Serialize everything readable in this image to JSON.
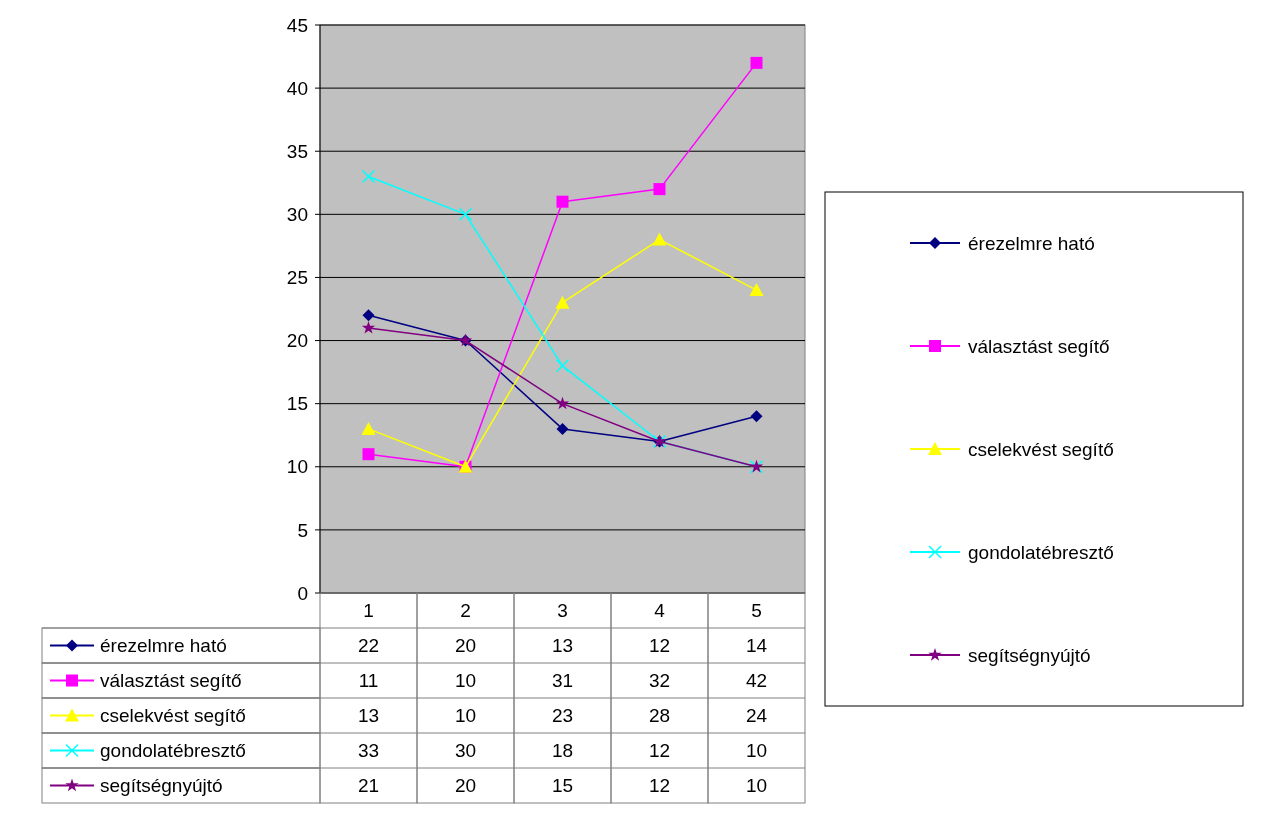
{
  "chart_data": {
    "type": "line",
    "categories": [
      "1",
      "2",
      "3",
      "4",
      "5"
    ],
    "ylim": [
      0,
      45
    ],
    "yticks": [
      0,
      5,
      10,
      15,
      20,
      25,
      30,
      35,
      40,
      45
    ],
    "grid": "y",
    "legend": "right",
    "data_labels": true,
    "series": [
      {
        "name": "érezelmre ható",
        "color": "#000080",
        "marker": "diamond",
        "values": [
          22,
          20,
          13,
          12,
          14
        ]
      },
      {
        "name": "választást segítő",
        "color": "#ff00ff",
        "marker": "square",
        "values": [
          11,
          10,
          31,
          32,
          42
        ]
      },
      {
        "name": "cselekvést segítő",
        "color": "#ffff00",
        "marker": "triangle",
        "values": [
          13,
          10,
          23,
          28,
          24
        ]
      },
      {
        "name": "gondolatébresztő",
        "color": "#00ffff",
        "marker": "cross",
        "values": [
          33,
          30,
          18,
          12,
          10
        ]
      },
      {
        "name": "segítségnyújtó",
        "color": "#800080",
        "marker": "star",
        "values": [
          21,
          20,
          15,
          12,
          10
        ]
      }
    ]
  }
}
